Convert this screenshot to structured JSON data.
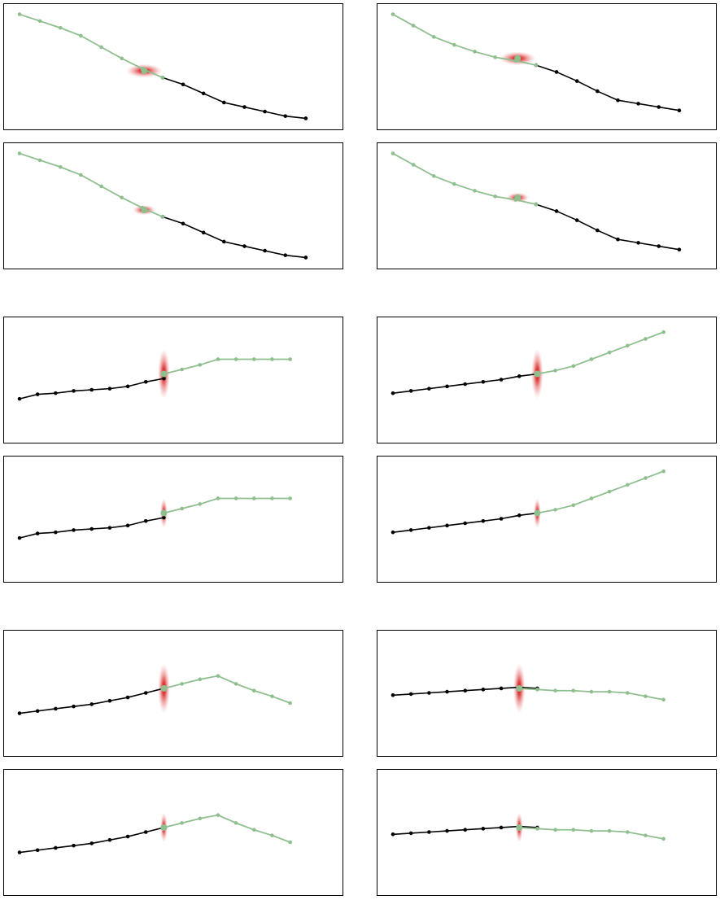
{
  "chart_data": [
    {
      "type": "line",
      "ylim": [
        0,
        1
      ],
      "x": [
        0,
        1,
        2,
        3,
        4,
        5,
        6,
        7,
        8,
        9,
        10,
        11,
        12,
        13,
        14,
        15
      ],
      "history": [
        0.96,
        0.9,
        0.84,
        0.77,
        0.67,
        0.57,
        0.48,
        0.4,
        0.34
      ],
      "prediction": [
        0.96,
        0.9,
        0.84,
        0.77,
        0.67,
        0.57,
        0.48,
        0.4
      ],
      "split_index": 7,
      "observed": [
        0.4,
        0.34,
        0.26,
        0.18,
        0.14,
        0.1,
        0.06,
        0.04
      ],
      "uncertainty": {
        "sx": 0.4,
        "sy": 0.06
      },
      "grid": false
    },
    {
      "type": "line",
      "ylim": [
        0,
        1
      ],
      "x": [
        0,
        1,
        2,
        3,
        4,
        5,
        6,
        7,
        8,
        9,
        10,
        11,
        12,
        13,
        14,
        15
      ],
      "prediction": [
        0.96,
        0.86,
        0.76,
        0.69,
        0.63,
        0.58,
        0.55,
        0.51
      ],
      "split_index": 7,
      "observed": [
        0.51,
        0.45,
        0.37,
        0.28,
        0.2,
        0.17,
        0.14,
        0.11
      ],
      "uncertainty": {
        "sx": 0.4,
        "sy": 0.06
      },
      "grid": false
    },
    {
      "type": "line",
      "ylim": [
        0,
        1
      ],
      "x": [
        0,
        1,
        2,
        3,
        4,
        5,
        6,
        7,
        8,
        9,
        10,
        11,
        12,
        13,
        14,
        15
      ],
      "prediction": [
        0.96,
        0.9,
        0.84,
        0.77,
        0.67,
        0.57,
        0.48,
        0.4
      ],
      "split_index": 7,
      "observed": [
        0.4,
        0.34,
        0.26,
        0.18,
        0.14,
        0.1,
        0.06,
        0.04
      ],
      "uncertainty": {
        "sx": 0.25,
        "sy": 0.04
      },
      "grid": false
    },
    {
      "type": "line",
      "ylim": [
        0,
        1
      ],
      "x": [
        0,
        1,
        2,
        3,
        4,
        5,
        6,
        7,
        8,
        9,
        10,
        11,
        12,
        13,
        14,
        15
      ],
      "prediction": [
        0.96,
        0.86,
        0.76,
        0.69,
        0.63,
        0.58,
        0.55,
        0.51
      ],
      "split_index": 7,
      "observed": [
        0.51,
        0.45,
        0.37,
        0.28,
        0.2,
        0.17,
        0.14,
        0.11
      ],
      "uncertainty": {
        "sx": 0.25,
        "sy": 0.04
      },
      "grid": false
    },
    {
      "type": "line",
      "ylim": [
        0,
        1
      ],
      "x": [
        0,
        1,
        2,
        3,
        4,
        5,
        6,
        7,
        8,
        9,
        10,
        11,
        12,
        13,
        14,
        15,
        16,
        17
      ],
      "observed": [
        0.33,
        0.37,
        0.38,
        0.4,
        0.41,
        0.42,
        0.44,
        0.48,
        0.51
      ],
      "observed_split": 7,
      "prediction_start": 8,
      "prediction": [
        0.55,
        0.59,
        0.63,
        0.68,
        0.68,
        0.68,
        0.68,
        0.68
      ],
      "uncertainty": {
        "sx": 0.15,
        "sy": 0.22
      },
      "grid": false
    },
    {
      "type": "line",
      "ylim": [
        0,
        1
      ],
      "x": [
        0,
        1,
        2,
        3,
        4,
        5,
        6,
        7,
        8,
        9,
        10,
        11,
        12,
        13,
        14,
        15,
        16,
        17
      ],
      "observed": [
        0.38,
        0.4,
        0.42,
        0.44,
        0.46,
        0.48,
        0.5,
        0.53,
        0.55
      ],
      "observed_split": 7,
      "prediction_start": 8,
      "prediction": [
        0.55,
        0.58,
        0.62,
        0.68,
        0.74,
        0.8,
        0.86,
        0.92
      ],
      "uncertainty": {
        "sx": 0.15,
        "sy": 0.22
      },
      "grid": false
    },
    {
      "type": "line",
      "ylim": [
        0,
        1
      ],
      "x": [
        0,
        1,
        2,
        3,
        4,
        5,
        6,
        7,
        8,
        9,
        10,
        11,
        12,
        13,
        14,
        15,
        16,
        17
      ],
      "observed": [
        0.33,
        0.37,
        0.38,
        0.4,
        0.41,
        0.42,
        0.44,
        0.48,
        0.51
      ],
      "observed_split": 7,
      "prediction_start": 8,
      "prediction": [
        0.55,
        0.59,
        0.63,
        0.68,
        0.68,
        0.68,
        0.68,
        0.68
      ],
      "uncertainty": {
        "sx": 0.09,
        "sy": 0.13
      },
      "grid": false
    },
    {
      "type": "line",
      "ylim": [
        0,
        1
      ],
      "x": [
        0,
        1,
        2,
        3,
        4,
        5,
        6,
        7,
        8,
        9,
        10,
        11,
        12,
        13,
        14,
        15,
        16,
        17
      ],
      "observed": [
        0.38,
        0.4,
        0.42,
        0.44,
        0.46,
        0.48,
        0.5,
        0.53,
        0.55
      ],
      "observed_split": 7,
      "prediction_start": 8,
      "prediction": [
        0.55,
        0.58,
        0.62,
        0.68,
        0.74,
        0.8,
        0.86,
        0.92
      ],
      "uncertainty": {
        "sx": 0.09,
        "sy": 0.13
      },
      "grid": false
    },
    {
      "type": "line",
      "ylim": [
        0,
        1
      ],
      "x": [
        0,
        1,
        2,
        3,
        4,
        5,
        6,
        7,
        8,
        9,
        10,
        11,
        12,
        13,
        14,
        15,
        16,
        17
      ],
      "observed": [
        0.32,
        0.34,
        0.36,
        0.38,
        0.4,
        0.43,
        0.46,
        0.5,
        0.54
      ],
      "observed_split": 7,
      "prediction_start": 8,
      "prediction": [
        0.54,
        0.58,
        0.62,
        0.65,
        0.58,
        0.52,
        0.47,
        0.41
      ],
      "uncertainty": {
        "sx": 0.15,
        "sy": 0.22
      },
      "grid": false
    },
    {
      "type": "line",
      "ylim": [
        0,
        1
      ],
      "x": [
        0,
        1,
        2,
        3,
        4,
        5,
        6,
        7,
        8,
        9,
        10,
        11,
        12,
        13,
        14,
        15,
        16,
        17
      ],
      "observed": [
        0.48,
        0.49,
        0.5,
        0.51,
        0.52,
        0.53,
        0.54,
        0.55,
        0.54
      ],
      "observed_split": 7,
      "prediction_start": 7,
      "prediction": [
        0.54,
        0.53,
        0.52,
        0.52,
        0.51,
        0.51,
        0.5,
        0.47,
        0.44
      ],
      "uncertainty": {
        "sx": 0.15,
        "sy": 0.22
      },
      "grid": false
    },
    {
      "type": "line",
      "ylim": [
        0,
        1
      ],
      "x": [
        0,
        1,
        2,
        3,
        4,
        5,
        6,
        7,
        8,
        9,
        10,
        11,
        12,
        13,
        14,
        15,
        16,
        17
      ],
      "observed": [
        0.32,
        0.34,
        0.36,
        0.38,
        0.4,
        0.43,
        0.46,
        0.5,
        0.54
      ],
      "observed_split": 7,
      "prediction_start": 8,
      "prediction": [
        0.54,
        0.58,
        0.62,
        0.65,
        0.58,
        0.52,
        0.47,
        0.41
      ],
      "uncertainty": {
        "sx": 0.09,
        "sy": 0.13
      },
      "grid": false
    },
    {
      "type": "line",
      "ylim": [
        0,
        1
      ],
      "x": [
        0,
        1,
        2,
        3,
        4,
        5,
        6,
        7,
        8,
        9,
        10,
        11,
        12,
        13,
        14,
        15,
        16,
        17
      ],
      "observed": [
        0.48,
        0.49,
        0.5,
        0.51,
        0.52,
        0.53,
        0.54,
        0.55,
        0.54
      ],
      "observed_split": 7,
      "prediction_start": 7,
      "prediction": [
        0.54,
        0.53,
        0.52,
        0.52,
        0.51,
        0.51,
        0.5,
        0.47,
        0.44
      ],
      "uncertainty": {
        "sx": 0.09,
        "sy": 0.13
      },
      "grid": false
    }
  ],
  "colors": {
    "observed": "#000000",
    "prediction": "#8fbf8f",
    "uncertainty": "#d40000",
    "frame": "#000000",
    "background": "#ffffff"
  }
}
